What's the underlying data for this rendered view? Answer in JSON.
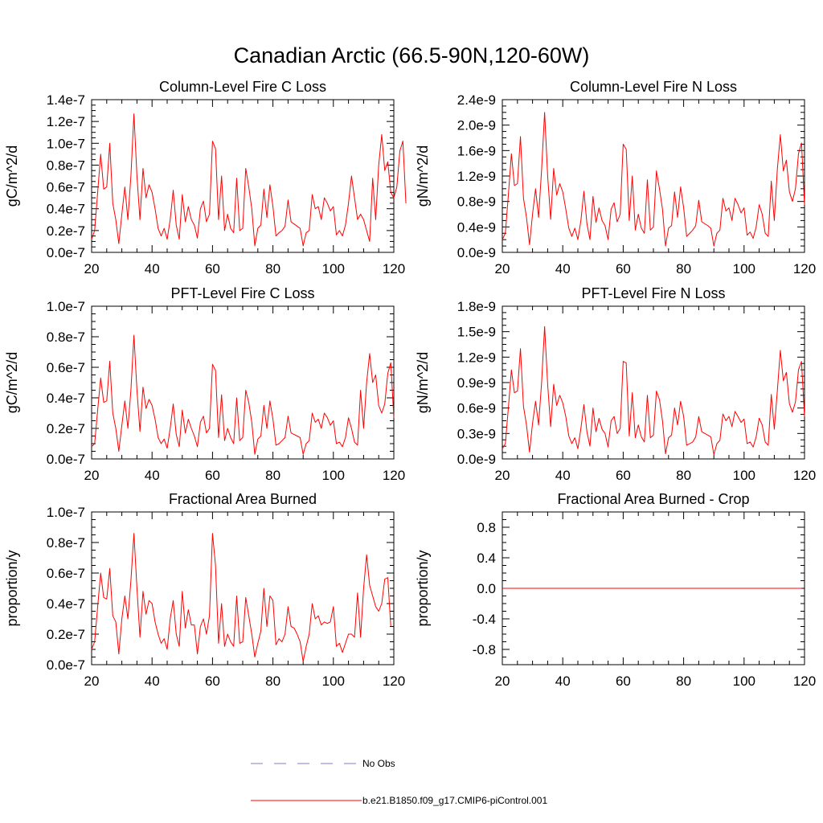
{
  "title": "Canadian Arctic (66.5-90N,120-60W)",
  "colors": {
    "model": "#ff0000",
    "obs": "#7f7fcc",
    "axis": "#000000"
  },
  "legend": {
    "items": [
      {
        "label": "No Obs",
        "style": "dashed",
        "color": "#7f7fcc"
      },
      {
        "label": "b.e21.B1850.f09_g17.CMIP6-piControl.001",
        "style": "solid",
        "color": "#ff0000"
      }
    ]
  },
  "chart_data": [
    {
      "type": "line",
      "title": "Column-Level Fire C Loss",
      "ylabel": "gC/m^2/d",
      "xlim": [
        20,
        120
      ],
      "ylim": [
        0,
        1.4
      ],
      "xticks": [
        20,
        40,
        60,
        80,
        100,
        120
      ],
      "xtick_labels": [
        "20",
        "40",
        "60",
        "80",
        "100",
        "120"
      ],
      "yticks": [
        0,
        0.2,
        0.4,
        0.6,
        0.8,
        1.0,
        1.2,
        1.4
      ],
      "ytick_labels": [
        "0.0e-7",
        "0.2e-7",
        "0.4e-7",
        "0.6e-7",
        "0.8e-7",
        "1.0e-7",
        "1.2e-7",
        "1.4e-7"
      ],
      "x_start": 20,
      "series": [
        {
          "name": "b.e21.B1850.f09_g17.CMIP6-piControl.001",
          "values": [
            0.12,
            0.2,
            0.55,
            0.9,
            0.58,
            0.6,
            1.0,
            0.45,
            0.3,
            0.08,
            0.35,
            0.6,
            0.3,
            0.7,
            1.27,
            0.7,
            0.3,
            0.77,
            0.5,
            0.62,
            0.55,
            0.4,
            0.22,
            0.15,
            0.22,
            0.12,
            0.3,
            0.57,
            0.25,
            0.12,
            0.53,
            0.28,
            0.42,
            0.3,
            0.25,
            0.13,
            0.4,
            0.47,
            0.28,
            0.35,
            1.02,
            0.95,
            0.3,
            0.7,
            0.2,
            0.35,
            0.22,
            0.18,
            0.68,
            0.2,
            0.22,
            0.77,
            0.6,
            0.4,
            0.06,
            0.22,
            0.25,
            0.58,
            0.32,
            0.62,
            0.42,
            0.15,
            0.18,
            0.2,
            0.24,
            0.48,
            0.28,
            0.26,
            0.24,
            0.22,
            0.06,
            0.18,
            0.2,
            0.53,
            0.4,
            0.42,
            0.3,
            0.5,
            0.45,
            0.38,
            0.42,
            0.16,
            0.2,
            0.15,
            0.25,
            0.45,
            0.7,
            0.5,
            0.3,
            0.35,
            0.3,
            0.2,
            0.1,
            0.68,
            0.3,
            0.8,
            1.08,
            0.75,
            0.83,
            0.55,
            0.5,
            0.6,
            0.93,
            1.02,
            0.45
          ]
        }
      ]
    },
    {
      "type": "line",
      "title": "Column-Level Fire N Loss",
      "ylabel": "gN/m^2/d",
      "xlim": [
        20,
        120
      ],
      "ylim": [
        0,
        2.4
      ],
      "xticks": [
        20,
        40,
        60,
        80,
        100,
        120
      ],
      "xtick_labels": [
        "20",
        "40",
        "60",
        "80",
        "100",
        "120"
      ],
      "yticks": [
        0,
        0.4,
        0.8,
        1.2,
        1.6,
        2.0,
        2.4
      ],
      "ytick_labels": [
        "0.0e-9",
        "0.4e-9",
        "0.8e-9",
        "1.2e-9",
        "1.6e-9",
        "2.0e-9",
        "2.4e-9"
      ],
      "x_start": 20,
      "series": [
        {
          "name": "b.e21.B1850.f09_g17.CMIP6-piControl.001",
          "values": [
            0.2,
            0.3,
            0.9,
            1.55,
            1.05,
            1.08,
            1.82,
            0.85,
            0.55,
            0.12,
            0.6,
            1.0,
            0.55,
            1.3,
            2.2,
            1.2,
            0.52,
            1.32,
            0.9,
            1.08,
            0.95,
            0.68,
            0.38,
            0.25,
            0.38,
            0.2,
            0.5,
            0.96,
            0.45,
            0.2,
            0.88,
            0.47,
            0.7,
            0.5,
            0.42,
            0.2,
            0.68,
            0.78,
            0.48,
            0.6,
            1.7,
            1.62,
            0.5,
            1.2,
            0.35,
            0.6,
            0.38,
            0.3,
            1.14,
            0.35,
            0.4,
            1.28,
            1.0,
            0.68,
            0.1,
            0.38,
            0.42,
            0.95,
            0.55,
            1.03,
            0.7,
            0.25,
            0.3,
            0.35,
            0.42,
            0.82,
            0.48,
            0.45,
            0.42,
            0.38,
            0.1,
            0.3,
            0.35,
            0.85,
            0.65,
            0.7,
            0.5,
            0.85,
            0.75,
            0.62,
            0.7,
            0.27,
            0.32,
            0.22,
            0.4,
            0.75,
            0.6,
            0.3,
            0.25,
            1.12,
            0.5,
            1.3,
            1.85,
            1.28,
            1.45,
            0.95,
            0.8,
            1.0,
            1.55,
            1.72,
            0.75
          ]
        }
      ]
    },
    {
      "type": "line",
      "title": "PFT-Level Fire C Loss",
      "ylabel": "gC/m^2/d",
      "xlim": [
        20,
        120
      ],
      "ylim": [
        0,
        1.0
      ],
      "xticks": [
        20,
        40,
        60,
        80,
        100,
        120
      ],
      "xtick_labels": [
        "20",
        "40",
        "60",
        "80",
        "100",
        "120"
      ],
      "yticks": [
        0,
        0.2,
        0.4,
        0.6,
        0.8,
        1.0
      ],
      "ytick_labels": [
        "0.0e-7",
        "0.2e-7",
        "0.4e-7",
        "0.6e-7",
        "0.8e-7",
        "1.0e-7"
      ],
      "x_start": 20,
      "series": [
        {
          "name": "b.e21.B1850.f09_g17.CMIP6-piControl.001",
          "values": [
            0.08,
            0.1,
            0.32,
            0.53,
            0.37,
            0.38,
            0.64,
            0.3,
            0.2,
            0.05,
            0.22,
            0.38,
            0.2,
            0.45,
            0.81,
            0.45,
            0.18,
            0.47,
            0.33,
            0.39,
            0.35,
            0.26,
            0.14,
            0.1,
            0.13,
            0.07,
            0.2,
            0.36,
            0.16,
            0.08,
            0.32,
            0.17,
            0.26,
            0.2,
            0.15,
            0.08,
            0.24,
            0.28,
            0.17,
            0.2,
            0.62,
            0.58,
            0.14,
            0.42,
            0.12,
            0.2,
            0.14,
            0.1,
            0.4,
            0.12,
            0.14,
            0.45,
            0.37,
            0.24,
            0.03,
            0.13,
            0.15,
            0.35,
            0.2,
            0.38,
            0.26,
            0.09,
            0.1,
            0.12,
            0.14,
            0.28,
            0.17,
            0.16,
            0.15,
            0.14,
            0.03,
            0.1,
            0.12,
            0.3,
            0.24,
            0.26,
            0.2,
            0.3,
            0.27,
            0.22,
            0.25,
            0.1,
            0.11,
            0.08,
            0.14,
            0.27,
            0.2,
            0.11,
            0.09,
            0.45,
            0.2,
            0.5,
            0.69,
            0.5,
            0.55,
            0.35,
            0.3,
            0.36,
            0.56,
            0.63,
            0.27
          ]
        }
      ]
    },
    {
      "type": "line",
      "title": "PFT-Level Fire N Loss",
      "ylabel": "gN/m^2/d",
      "xlim": [
        20,
        120
      ],
      "ylim": [
        0,
        1.8
      ],
      "xticks": [
        20,
        40,
        60,
        80,
        100,
        120
      ],
      "xtick_labels": [
        "20",
        "40",
        "60",
        "80",
        "100",
        "120"
      ],
      "yticks": [
        0,
        0.3,
        0.6,
        0.9,
        1.2,
        1.5,
        1.8
      ],
      "ytick_labels": [
        "0.0e-9",
        "0.3e-9",
        "0.6e-9",
        "0.9e-9",
        "1.2e-9",
        "1.5e-9",
        "1.8e-9"
      ],
      "x_start": 20,
      "series": [
        {
          "name": "b.e21.B1850.f09_g17.CMIP6-piControl.001",
          "values": [
            0.12,
            0.18,
            0.6,
            1.05,
            0.78,
            0.8,
            1.3,
            0.62,
            0.4,
            0.08,
            0.42,
            0.68,
            0.4,
            0.9,
            1.56,
            0.88,
            0.38,
            0.88,
            0.63,
            0.75,
            0.66,
            0.5,
            0.27,
            0.18,
            0.25,
            0.12,
            0.36,
            0.64,
            0.32,
            0.15,
            0.6,
            0.32,
            0.48,
            0.35,
            0.3,
            0.14,
            0.45,
            0.5,
            0.3,
            0.36,
            1.15,
            1.13,
            0.27,
            0.78,
            0.25,
            0.4,
            0.26,
            0.2,
            0.75,
            0.25,
            0.28,
            0.8,
            0.7,
            0.45,
            0.06,
            0.25,
            0.28,
            0.6,
            0.4,
            0.68,
            0.5,
            0.16,
            0.18,
            0.2,
            0.26,
            0.5,
            0.32,
            0.3,
            0.28,
            0.26,
            0.05,
            0.18,
            0.22,
            0.53,
            0.45,
            0.5,
            0.38,
            0.56,
            0.5,
            0.43,
            0.47,
            0.18,
            0.2,
            0.14,
            0.26,
            0.48,
            0.4,
            0.2,
            0.16,
            0.76,
            0.35,
            0.8,
            1.28,
            0.92,
            1.02,
            0.65,
            0.55,
            0.67,
            1.05,
            1.15,
            0.5
          ]
        }
      ]
    },
    {
      "type": "line",
      "title": "Fractional Area Burned",
      "ylabel": "proportion/y",
      "xlim": [
        20,
        120
      ],
      "ylim": [
        0,
        1.0
      ],
      "xticks": [
        20,
        40,
        60,
        80,
        100,
        120
      ],
      "xtick_labels": [
        "20",
        "40",
        "60",
        "80",
        "100",
        "120"
      ],
      "yticks": [
        0,
        0.2,
        0.4,
        0.6,
        0.8,
        1.0
      ],
      "ytick_labels": [
        "0.0e-7",
        "0.2e-7",
        "0.4e-7",
        "0.6e-7",
        "0.8e-7",
        "1.0e-7"
      ],
      "x_start": 20,
      "series": [
        {
          "name": "b.e21.B1850.f09_g17.CMIP6-piControl.001",
          "values": [
            0.1,
            0.15,
            0.38,
            0.6,
            0.44,
            0.43,
            0.63,
            0.32,
            0.28,
            0.07,
            0.3,
            0.45,
            0.3,
            0.55,
            0.86,
            0.5,
            0.18,
            0.48,
            0.33,
            0.42,
            0.4,
            0.28,
            0.2,
            0.14,
            0.17,
            0.1,
            0.3,
            0.42,
            0.2,
            0.12,
            0.48,
            0.24,
            0.36,
            0.26,
            0.26,
            0.07,
            0.25,
            0.3,
            0.2,
            0.32,
            0.86,
            0.65,
            0.14,
            0.4,
            0.12,
            0.2,
            0.15,
            0.12,
            0.45,
            0.14,
            0.15,
            0.44,
            0.32,
            0.2,
            0.05,
            0.14,
            0.22,
            0.5,
            0.25,
            0.45,
            0.42,
            0.13,
            0.17,
            0.15,
            0.2,
            0.38,
            0.25,
            0.24,
            0.2,
            0.15,
            0.02,
            0.12,
            0.2,
            0.4,
            0.3,
            0.32,
            0.26,
            0.28,
            0.27,
            0.28,
            0.38,
            0.12,
            0.14,
            0.08,
            0.14,
            0.2,
            0.2,
            0.18,
            0.47,
            0.18,
            0.5,
            0.72,
            0.52,
            0.45,
            0.38,
            0.35,
            0.4,
            0.56,
            0.57,
            0.25
          ]
        }
      ]
    },
    {
      "type": "line",
      "title": "Fractional Area Burned - Crop",
      "ylabel": "proportion/y",
      "xlim": [
        20,
        120
      ],
      "ylim": [
        -1.0,
        1.0
      ],
      "xticks": [
        20,
        40,
        60,
        80,
        100,
        120
      ],
      "xtick_labels": [
        "20",
        "40",
        "60",
        "80",
        "100",
        "120"
      ],
      "yticks": [
        -0.8,
        -0.4,
        0.0,
        0.4,
        0.8
      ],
      "ytick_labels": [
        "-0.8",
        "-0.4",
        "0.0",
        "0.4",
        "0.8"
      ],
      "x_start": 20,
      "series": [
        {
          "name": "b.e21.B1850.f09_g17.CMIP6-piControl.001",
          "values": [
            0,
            0,
            0,
            0,
            0,
            0,
            0,
            0,
            0,
            0,
            0,
            0,
            0,
            0,
            0,
            0,
            0,
            0,
            0,
            0,
            0,
            0,
            0,
            0,
            0,
            0,
            0,
            0,
            0,
            0,
            0,
            0,
            0,
            0,
            0,
            0,
            0,
            0,
            0,
            0,
            0,
            0,
            0,
            0,
            0,
            0,
            0,
            0,
            0,
            0,
            0,
            0,
            0,
            0,
            0,
            0,
            0,
            0,
            0,
            0,
            0,
            0,
            0,
            0,
            0,
            0,
            0,
            0,
            0,
            0,
            0,
            0,
            0,
            0,
            0,
            0,
            0,
            0,
            0,
            0,
            0,
            0,
            0,
            0,
            0,
            0,
            0,
            0,
            0,
            0,
            0,
            0,
            0,
            0,
            0,
            0,
            0,
            0,
            0,
            0
          ]
        }
      ]
    }
  ]
}
